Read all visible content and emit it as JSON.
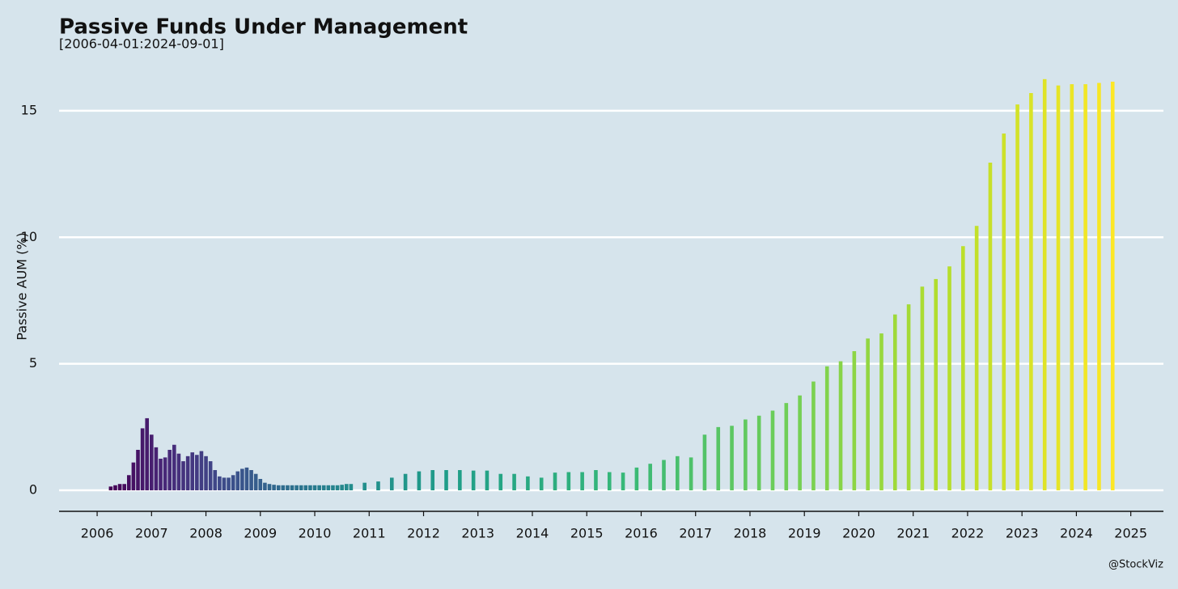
{
  "chart_data": {
    "type": "bar",
    "title": "Passive Funds Under Management",
    "subtitle": "[2006-04-01:2024-09-01]",
    "y_label": "Passive AUM (%)",
    "caption": "@StockViz",
    "colormap": [
      "#440154",
      "#482878",
      "#3e4989",
      "#31688e",
      "#26828e",
      "#1f9e89",
      "#35b779",
      "#6ece58",
      "#b5de2b",
      "#fde725"
    ],
    "x": [
      "2006-04",
      "2006-05",
      "2006-06",
      "2006-07",
      "2006-08",
      "2006-09",
      "2006-10",
      "2006-11",
      "2006-12",
      "2007-01",
      "2007-02",
      "2007-03",
      "2007-04",
      "2007-05",
      "2007-06",
      "2007-07",
      "2007-08",
      "2007-09",
      "2007-10",
      "2007-11",
      "2007-12",
      "2008-01",
      "2008-02",
      "2008-03",
      "2008-04",
      "2008-05",
      "2008-06",
      "2008-07",
      "2008-08",
      "2008-09",
      "2008-10",
      "2008-11",
      "2008-12",
      "2009-01",
      "2009-02",
      "2009-03",
      "2009-04",
      "2009-05",
      "2009-06",
      "2009-07",
      "2009-08",
      "2009-09",
      "2009-10",
      "2009-11",
      "2009-12",
      "2010-01",
      "2010-02",
      "2010-03",
      "2010-04",
      "2010-05",
      "2010-06",
      "2010-07",
      "2010-08",
      "2010-09",
      "2010-12",
      "2011-03",
      "2011-06",
      "2011-09",
      "2011-12",
      "2012-03",
      "2012-06",
      "2012-09",
      "2012-12",
      "2013-03",
      "2013-06",
      "2013-09",
      "2013-12",
      "2014-03",
      "2014-06",
      "2014-09",
      "2014-12",
      "2015-03",
      "2015-06",
      "2015-09",
      "2015-12",
      "2016-03",
      "2016-06",
      "2016-09",
      "2016-12",
      "2017-03",
      "2017-06",
      "2017-09",
      "2017-12",
      "2018-03",
      "2018-06",
      "2018-09",
      "2018-12",
      "2019-03",
      "2019-06",
      "2019-09",
      "2019-12",
      "2020-03",
      "2020-06",
      "2020-09",
      "2020-12",
      "2021-03",
      "2021-06",
      "2021-09",
      "2021-12",
      "2022-03",
      "2022-06",
      "2022-09",
      "2022-12",
      "2023-03",
      "2023-06",
      "2023-09",
      "2023-12",
      "2024-03",
      "2024-06",
      "2024-09"
    ],
    "values": [
      0.15,
      0.2,
      0.25,
      0.25,
      0.6,
      1.1,
      1.6,
      2.45,
      2.85,
      2.2,
      1.7,
      1.25,
      1.3,
      1.6,
      1.8,
      1.45,
      1.15,
      1.35,
      1.5,
      1.4,
      1.55,
      1.35,
      1.15,
      0.8,
      0.55,
      0.5,
      0.5,
      0.6,
      0.75,
      0.85,
      0.9,
      0.8,
      0.65,
      0.45,
      0.3,
      0.25,
      0.22,
      0.2,
      0.2,
      0.2,
      0.2,
      0.2,
      0.2,
      0.2,
      0.2,
      0.2,
      0.2,
      0.2,
      0.2,
      0.2,
      0.2,
      0.22,
      0.25,
      0.25,
      0.3,
      0.35,
      0.5,
      0.65,
      0.75,
      0.8,
      0.8,
      0.8,
      0.78,
      0.78,
      0.65,
      0.65,
      0.55,
      0.5,
      0.7,
      0.72,
      0.72,
      0.8,
      0.72,
      0.7,
      0.9,
      1.05,
      1.2,
      1.35,
      1.3,
      2.2,
      2.5,
      2.55,
      2.8,
      2.95,
      3.15,
      3.45,
      3.75,
      4.3,
      4.9,
      5.1,
      5.5,
      6.0,
      6.2,
      6.95,
      7.35,
      8.05,
      8.35,
      8.85,
      9.65,
      10.45,
      12.95,
      14.1,
      15.25,
      15.7,
      16.25,
      16.0,
      16.05,
      16.05,
      16.1,
      16.15
    ],
    "xlim": [
      2005.3,
      2025.6
    ],
    "xticks": [
      2006,
      2007,
      2008,
      2009,
      2010,
      2011,
      2012,
      2013,
      2014,
      2015,
      2016,
      2017,
      2018,
      2019,
      2020,
      2021,
      2022,
      2023,
      2024,
      2025
    ],
    "ylim": [
      -0.83,
      16.5
    ],
    "yticks": [
      0,
      5,
      10,
      15
    ],
    "grid": true
  }
}
